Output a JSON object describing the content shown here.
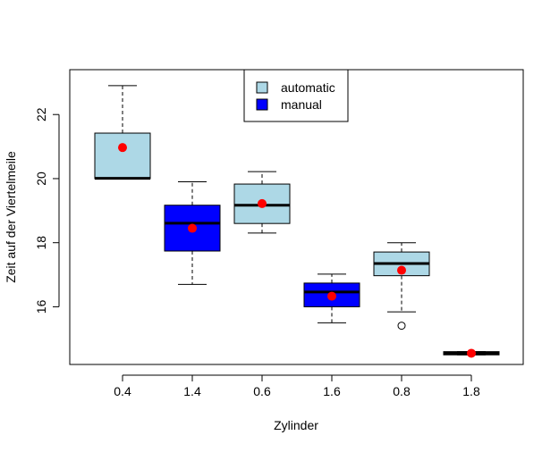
{
  "chart_data": {
    "type": "boxplot",
    "title": "",
    "xlabel": "Zylinder",
    "ylabel": "Zeit auf der Viertelmeile",
    "categories": [
      "0.4",
      "1.4",
      "0.6",
      "1.6",
      "0.8",
      "1.8"
    ],
    "ylim": [
      14.2,
      23.4
    ],
    "yticks": [
      16,
      18,
      20,
      22
    ],
    "legend": {
      "placement": "top-center",
      "entries": [
        {
          "label": "automatic",
          "color": "#ADD8E6"
        },
        {
          "label": "manual",
          "color": "#0000FF"
        }
      ]
    },
    "boxes": [
      {
        "category": "0.4",
        "group": "automatic",
        "whisker_low": 20.0,
        "q1": 20.0,
        "median": 20.01,
        "q3": 21.42,
        "whisker_high": 22.9,
        "mean": 20.97,
        "outliers": []
      },
      {
        "category": "1.4",
        "group": "manual",
        "whisker_low": 16.7,
        "q1": 17.74,
        "median": 18.61,
        "q3": 19.17,
        "whisker_high": 19.9,
        "mean": 18.45,
        "outliers": []
      },
      {
        "category": "0.6",
        "group": "automatic",
        "whisker_low": 18.3,
        "q1": 18.6,
        "median": 19.17,
        "q3": 19.83,
        "whisker_high": 20.22,
        "mean": 19.22,
        "outliers": []
      },
      {
        "category": "1.6",
        "group": "manual",
        "whisker_low": 15.5,
        "q1": 16.0,
        "median": 16.46,
        "q3": 16.74,
        "whisker_high": 17.02,
        "mean": 16.33,
        "outliers": []
      },
      {
        "category": "0.8",
        "group": "automatic",
        "whisker_low": 15.84,
        "q1": 16.97,
        "median": 17.35,
        "q3": 17.71,
        "whisker_high": 18.0,
        "mean": 17.14,
        "outliers": [
          15.41
        ]
      },
      {
        "category": "1.8",
        "group": "manual",
        "whisker_low": 14.5,
        "q1": 14.5,
        "median": 14.55,
        "q3": 14.6,
        "whisker_high": 14.6,
        "mean": 14.55,
        "outliers": []
      }
    ],
    "colors": {
      "automatic": "#ADD8E6",
      "manual": "#0000FF",
      "mean_point": "#FF0000"
    },
    "grid": false
  }
}
